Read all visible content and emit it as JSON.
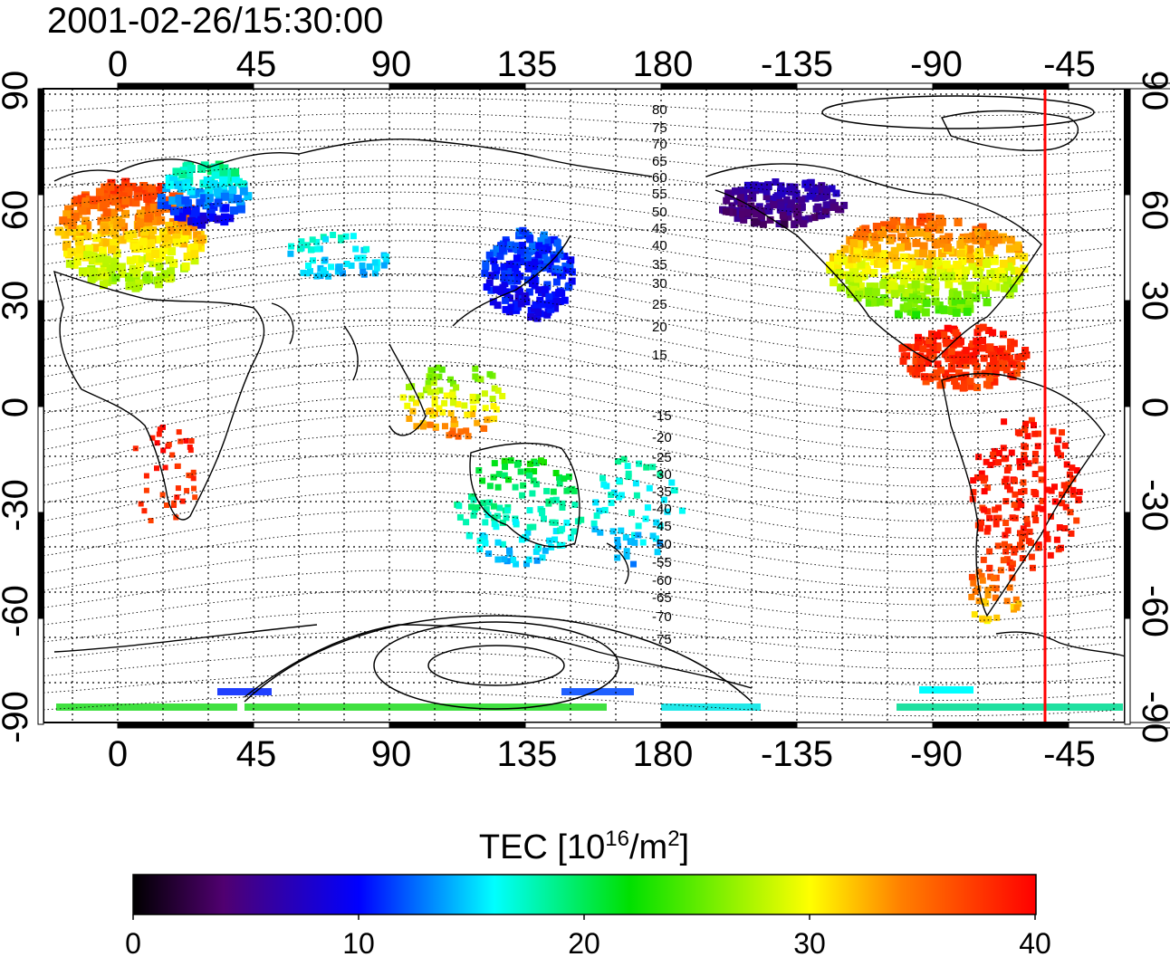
{
  "title": "2001-02-26/15:30:00",
  "map": {
    "top_lon_ticks": [
      "0",
      "45",
      "90",
      "135",
      "180",
      "-135",
      "-90",
      "-45"
    ],
    "bottom_lon_ticks": [
      "0",
      "45",
      "90",
      "135",
      "180",
      "-135",
      "-90",
      "-45"
    ],
    "left_lat_ticks": [
      "90",
      "60",
      "30",
      "0",
      "-30",
      "-60",
      "-90"
    ],
    "right_lat_ticks": [
      "90",
      "60",
      "30",
      "0",
      "-30",
      "-60",
      "-90"
    ],
    "contour_labels": [
      "80",
      "75",
      "70",
      "65",
      "60",
      "55",
      "50",
      "45",
      "40",
      "35",
      "30",
      "25",
      "20",
      "15",
      "-15",
      "-20",
      "-25",
      "-30",
      "-35",
      "-40",
      "-45",
      "-50",
      "-55",
      "-60",
      "-65",
      "-70",
      "-75"
    ],
    "colors": {
      "terminator": "#ff0000",
      "coast": "#000000"
    }
  },
  "colorbar": {
    "label_main": "TEC  [10",
    "label_exp1": "16",
    "label_mid": "/m",
    "label_exp2": "2",
    "label_end": "]",
    "ticks": [
      "0",
      "10",
      "20",
      "30",
      "40"
    ],
    "stops": [
      {
        "v": 0,
        "c": "#000000"
      },
      {
        "v": 4,
        "c": "#500070"
      },
      {
        "v": 10,
        "c": "#0000ff"
      },
      {
        "v": 16,
        "c": "#00ffff"
      },
      {
        "v": 22,
        "c": "#00e000"
      },
      {
        "v": 30,
        "c": "#ffff00"
      },
      {
        "v": 34,
        "c": "#ff8000"
      },
      {
        "v": 40,
        "c": "#ff0000"
      }
    ]
  }
}
